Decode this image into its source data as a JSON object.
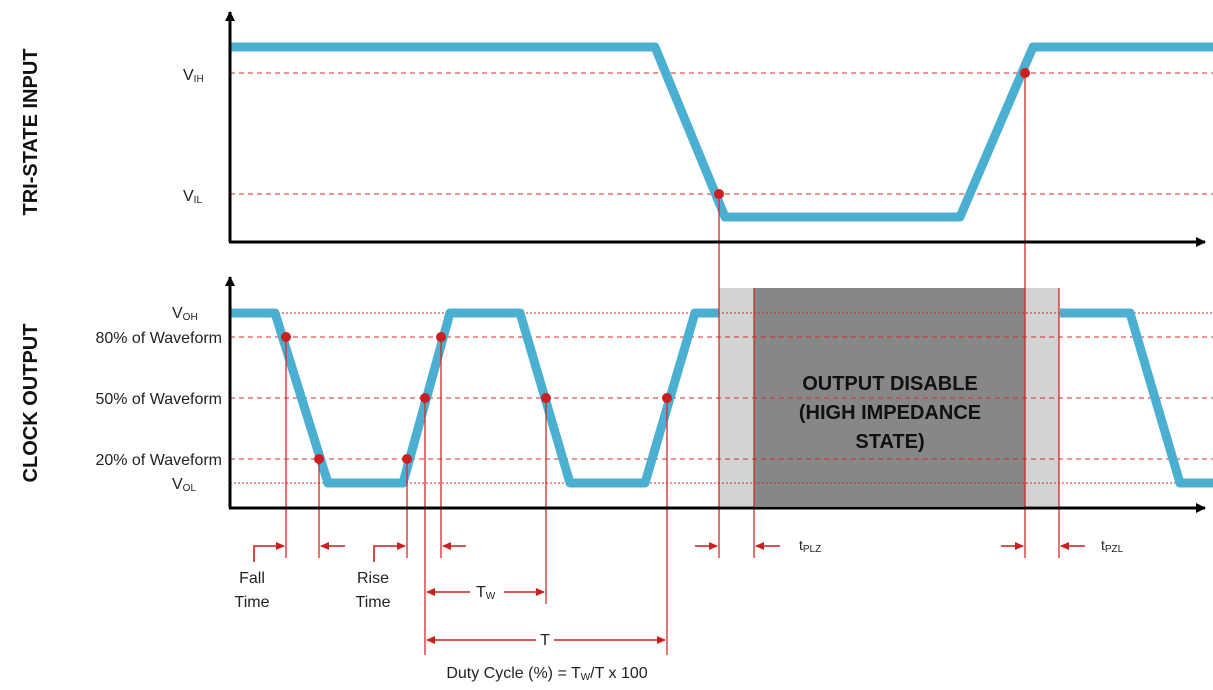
{
  "colors": {
    "waveform": "#4bafd1",
    "guide": "#d42a2a",
    "marker": "#cc1f1f",
    "axis": "#000000",
    "disable_dark": "#878787",
    "disable_light": "#d3d3d3"
  },
  "top_panel": {
    "title": "TRI-STATE INPUT",
    "vih": {
      "main": "V",
      "sub": "IH"
    },
    "vil": {
      "main": "V",
      "sub": "IL"
    }
  },
  "bottom_panel": {
    "title": "CLOCK OUTPUT",
    "voh": {
      "main": "V",
      "sub": "OH"
    },
    "p80": "80% of Waveform",
    "p50": "50% of Waveform",
    "p20": "20% of Waveform",
    "vol": {
      "main": "V",
      "sub": "OL"
    }
  },
  "disable_box": {
    "line1": "OUTPUT DISABLE",
    "line2": "(HIGH IMPEDANCE",
    "line3": "STATE)"
  },
  "timing": {
    "fall_line1": "Fall",
    "fall_line2": "Time",
    "rise_line1": "Rise",
    "rise_line2": "Time",
    "tw": {
      "main": "T",
      "sub": "W"
    },
    "t": "T",
    "tplz": {
      "main": "t",
      "sub": "PLZ"
    },
    "tpzl": {
      "main": "t",
      "sub": "PZL"
    },
    "duty": {
      "pre": "Duty Cycle (%) = T",
      "sub": "W",
      "post": "/T x 100"
    }
  }
}
